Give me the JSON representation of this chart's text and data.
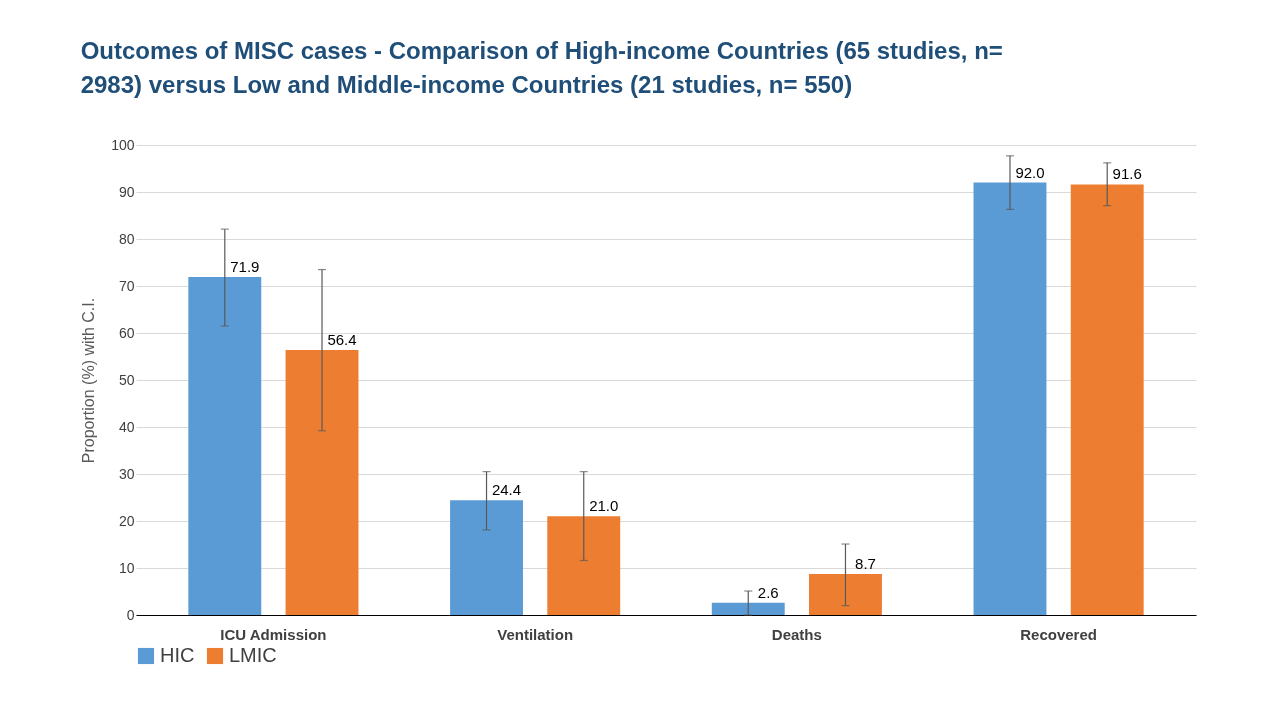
{
  "chart_data": {
    "type": "bar",
    "title": "Outcomes of MISC cases - Comparison of High-income Countries (65 studies, n= 2983) versus Low and Middle-income Countries (21 studies, n= 550)",
    "ylabel": "Proportion (%) with C.I.",
    "categories": [
      "ICU Admission",
      "Ventilation",
      "Deaths",
      "Recovered"
    ],
    "series": [
      {
        "name": "HIC",
        "color": "#5b9bd5",
        "values": [
          71.9,
          24.4,
          2.6,
          92.0
        ],
        "value_labels": [
          "71.9",
          "24.4",
          "2.6",
          "92.0"
        ],
        "errors": [
          [
            61.5,
            82.1
          ],
          [
            18.1,
            30.5
          ],
          [
            0,
            5.1
          ],
          [
            86.3,
            97.7
          ]
        ]
      },
      {
        "name": "LMIC",
        "color": "#ed7d31",
        "values": [
          56.4,
          21.0,
          8.7,
          91.6
        ],
        "value_labels": [
          "56.4",
          "21.0",
          "8.7",
          "91.6"
        ],
        "errors": [
          [
            39.2,
            73.5
          ],
          [
            11.6,
            30.5
          ],
          [
            2.0,
            15.1
          ],
          [
            87.1,
            96.2
          ]
        ]
      }
    ],
    "ylim": [
      0,
      100
    ],
    "yticks": [
      0,
      10,
      20,
      30,
      40,
      50,
      60,
      70,
      80,
      90,
      100
    ],
    "grid": "y",
    "legend": "bottom"
  }
}
